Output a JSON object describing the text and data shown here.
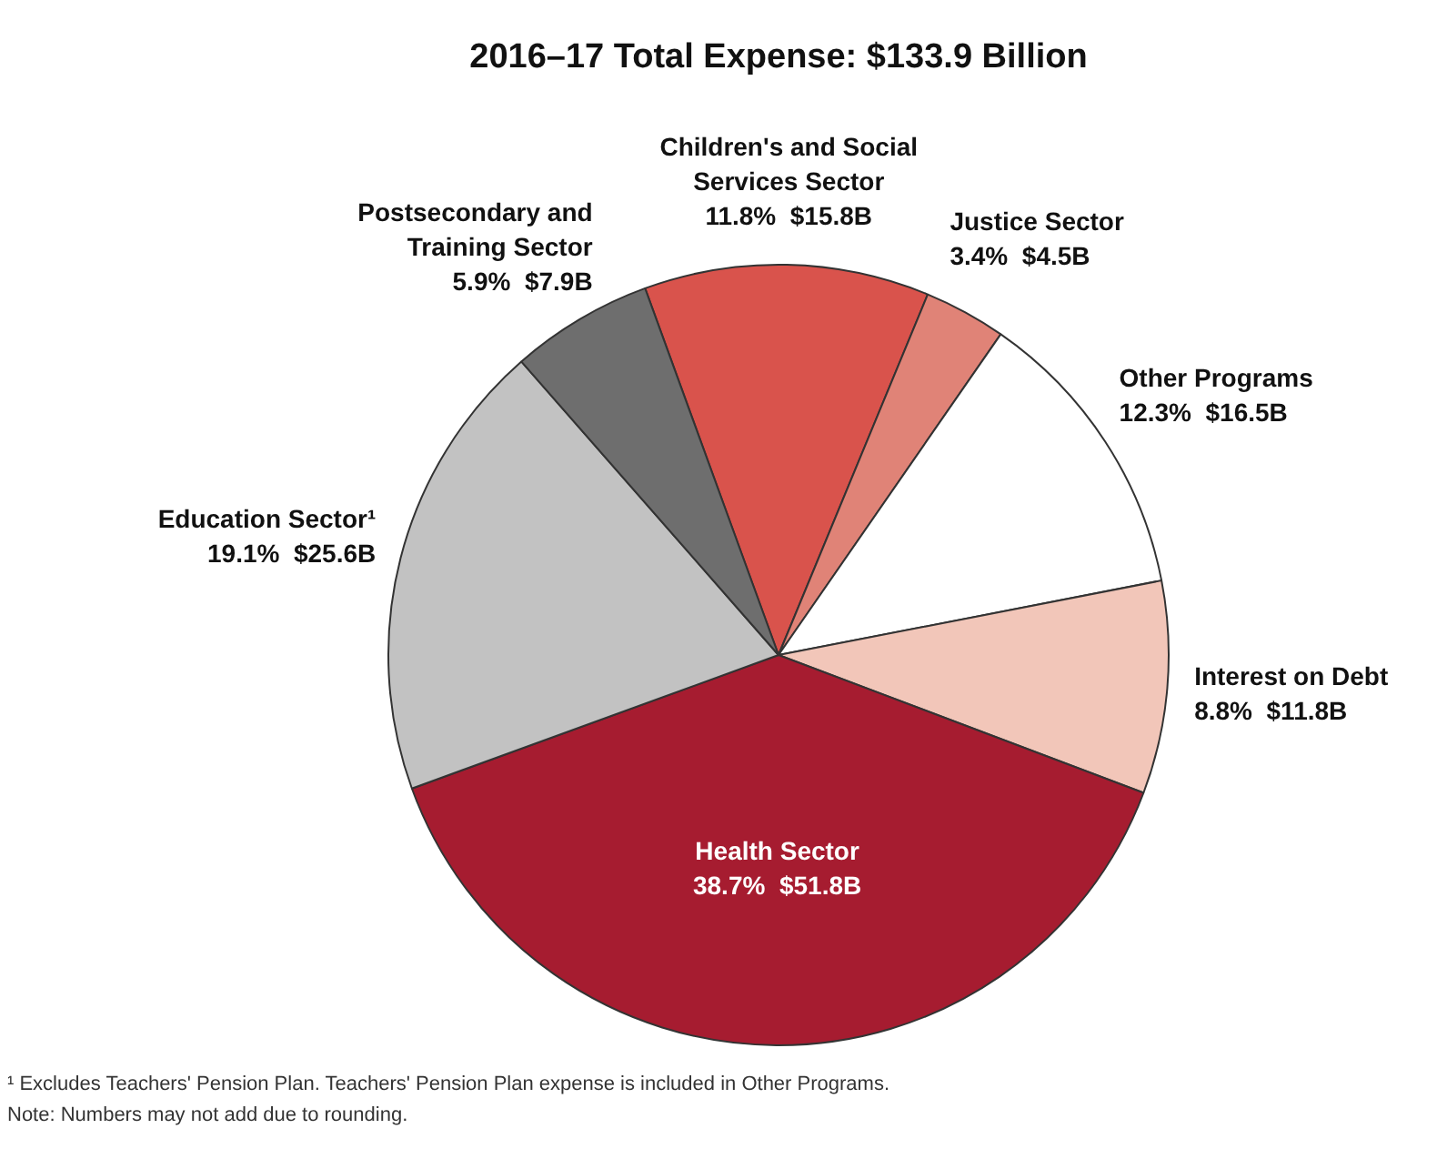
{
  "chart_data": {
    "type": "pie",
    "title": "2016–17 Total Expense: $133.9 Billion",
    "categories": [
      "Children's and Social Services Sector",
      "Justice Sector",
      "Other Programs",
      "Interest on Debt",
      "Health Sector",
      "Education Sector¹",
      "Postsecondary and Training Sector"
    ],
    "values": [
      11.8,
      3.4,
      12.3,
      8.8,
      38.7,
      19.1,
      5.9
    ],
    "value_labels": [
      "11.8%  $15.8B",
      "3.4%  $4.5B",
      "12.3%  $16.5B",
      "8.8%  $11.8B",
      "38.7%  $51.8B",
      "19.1%  $25.6B",
      "5.9%  $7.9B"
    ],
    "colors": [
      "#d9534c",
      "#e08377",
      "#ffffff",
      "#f2c6b9",
      "#a61c30",
      "#c2c2c2",
      "#6e6e6e"
    ],
    "legend": false,
    "annotations": [
      "¹ Excludes Teachers' Pension Plan. Teachers' Pension Plan expense is included in Other Programs.",
      "Note: Numbers may not add due to rounding."
    ]
  }
}
